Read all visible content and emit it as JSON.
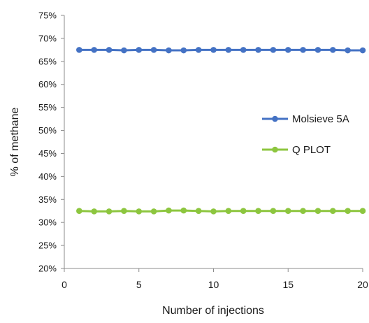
{
  "chart_data": {
    "type": "line",
    "title": "",
    "xlabel": "Number of injections",
    "ylabel": "% of methane",
    "xlim": [
      0,
      20
    ],
    "ylim": [
      0.2,
      0.75
    ],
    "x_ticks": [
      0,
      5,
      10,
      15,
      20
    ],
    "x_tick_labels": [
      "0",
      "5",
      "10",
      "15",
      "20"
    ],
    "y_ticks": [
      0.2,
      0.25,
      0.3,
      0.35,
      0.4,
      0.45,
      0.5,
      0.55,
      0.6,
      0.65,
      0.7,
      0.75
    ],
    "y_tick_labels": [
      "20%",
      "25%",
      "30%",
      "35%",
      "40%",
      "45%",
      "50%",
      "55%",
      "60%",
      "65%",
      "70%",
      "75%"
    ],
    "grid": false,
    "legend_position": "right",
    "x": [
      1,
      2,
      3,
      4,
      5,
      6,
      7,
      8,
      9,
      10,
      11,
      12,
      13,
      14,
      15,
      16,
      17,
      18,
      19,
      20
    ],
    "series": [
      {
        "name": "Molsieve 5A",
        "color": "#4472C4",
        "values": [
          0.675,
          0.675,
          0.675,
          0.674,
          0.675,
          0.675,
          0.674,
          0.674,
          0.675,
          0.675,
          0.675,
          0.675,
          0.675,
          0.675,
          0.675,
          0.675,
          0.675,
          0.675,
          0.674,
          0.674
        ]
      },
      {
        "name": "Q PLOT",
        "color": "#8DC63F",
        "values": [
          0.325,
          0.324,
          0.324,
          0.325,
          0.324,
          0.324,
          0.326,
          0.326,
          0.325,
          0.324,
          0.325,
          0.325,
          0.325,
          0.325,
          0.325,
          0.325,
          0.325,
          0.325,
          0.325,
          0.325
        ]
      }
    ]
  }
}
